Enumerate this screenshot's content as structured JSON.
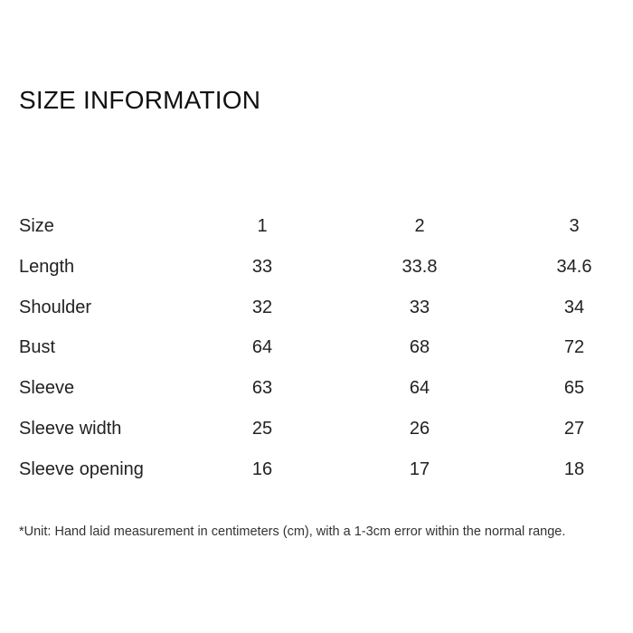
{
  "title": "SIZE INFORMATION",
  "table": {
    "rows": [
      {
        "label": "Size",
        "values": [
          "1",
          "2",
          "3"
        ]
      },
      {
        "label": "Length",
        "values": [
          "33",
          "33.8",
          "34.6"
        ]
      },
      {
        "label": "Shoulder",
        "values": [
          "32",
          "33",
          "34"
        ]
      },
      {
        "label": "Bust",
        "values": [
          "64",
          "68",
          "72"
        ]
      },
      {
        "label": "Sleeve",
        "values": [
          "63",
          "64",
          "65"
        ]
      },
      {
        "label": "Sleeve width",
        "values": [
          "25",
          "26",
          "27"
        ]
      },
      {
        "label": "Sleeve opening",
        "values": [
          "16",
          "17",
          "18"
        ]
      }
    ]
  },
  "note": "*Unit: Hand laid measurement in centimeters (cm), with a 1-3cm error within the normal range."
}
